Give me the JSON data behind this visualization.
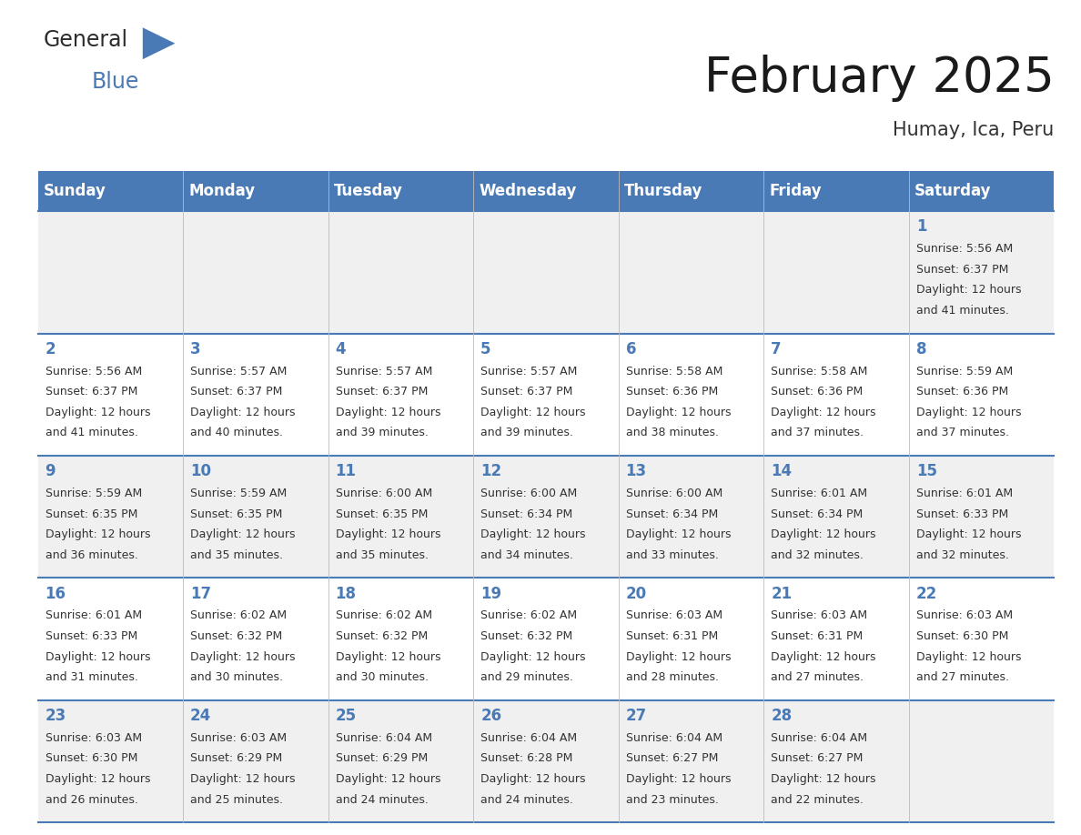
{
  "title": "February 2025",
  "subtitle": "Humay, Ica, Peru",
  "days_of_week": [
    "Sunday",
    "Monday",
    "Tuesday",
    "Wednesday",
    "Thursday",
    "Friday",
    "Saturday"
  ],
  "header_bg_color": "#4a7ab5",
  "header_text_color": "#FFFFFF",
  "cell_bg_even": "#f0f0f0",
  "cell_bg_odd": "#FFFFFF",
  "day_number_color": "#4a7ab5",
  "text_color": "#333333",
  "line_color": "#4a7ab5",
  "background_color": "#FFFFFF",
  "weeks": [
    [
      {
        "day": null,
        "sunrise": null,
        "sunset": null,
        "daylight": null
      },
      {
        "day": null,
        "sunrise": null,
        "sunset": null,
        "daylight": null
      },
      {
        "day": null,
        "sunrise": null,
        "sunset": null,
        "daylight": null
      },
      {
        "day": null,
        "sunrise": null,
        "sunset": null,
        "daylight": null
      },
      {
        "day": null,
        "sunrise": null,
        "sunset": null,
        "daylight": null
      },
      {
        "day": null,
        "sunrise": null,
        "sunset": null,
        "daylight": null
      },
      {
        "day": 1,
        "sunrise": "5:56 AM",
        "sunset": "6:37 PM",
        "daylight": "12 hours and 41 minutes."
      }
    ],
    [
      {
        "day": 2,
        "sunrise": "5:56 AM",
        "sunset": "6:37 PM",
        "daylight": "12 hours and 41 minutes."
      },
      {
        "day": 3,
        "sunrise": "5:57 AM",
        "sunset": "6:37 PM",
        "daylight": "12 hours and 40 minutes."
      },
      {
        "day": 4,
        "sunrise": "5:57 AM",
        "sunset": "6:37 PM",
        "daylight": "12 hours and 39 minutes."
      },
      {
        "day": 5,
        "sunrise": "5:57 AM",
        "sunset": "6:37 PM",
        "daylight": "12 hours and 39 minutes."
      },
      {
        "day": 6,
        "sunrise": "5:58 AM",
        "sunset": "6:36 PM",
        "daylight": "12 hours and 38 minutes."
      },
      {
        "day": 7,
        "sunrise": "5:58 AM",
        "sunset": "6:36 PM",
        "daylight": "12 hours and 37 minutes."
      },
      {
        "day": 8,
        "sunrise": "5:59 AM",
        "sunset": "6:36 PM",
        "daylight": "12 hours and 37 minutes."
      }
    ],
    [
      {
        "day": 9,
        "sunrise": "5:59 AM",
        "sunset": "6:35 PM",
        "daylight": "12 hours and 36 minutes."
      },
      {
        "day": 10,
        "sunrise": "5:59 AM",
        "sunset": "6:35 PM",
        "daylight": "12 hours and 35 minutes."
      },
      {
        "day": 11,
        "sunrise": "6:00 AM",
        "sunset": "6:35 PM",
        "daylight": "12 hours and 35 minutes."
      },
      {
        "day": 12,
        "sunrise": "6:00 AM",
        "sunset": "6:34 PM",
        "daylight": "12 hours and 34 minutes."
      },
      {
        "day": 13,
        "sunrise": "6:00 AM",
        "sunset": "6:34 PM",
        "daylight": "12 hours and 33 minutes."
      },
      {
        "day": 14,
        "sunrise": "6:01 AM",
        "sunset": "6:34 PM",
        "daylight": "12 hours and 32 minutes."
      },
      {
        "day": 15,
        "sunrise": "6:01 AM",
        "sunset": "6:33 PM",
        "daylight": "12 hours and 32 minutes."
      }
    ],
    [
      {
        "day": 16,
        "sunrise": "6:01 AM",
        "sunset": "6:33 PM",
        "daylight": "12 hours and 31 minutes."
      },
      {
        "day": 17,
        "sunrise": "6:02 AM",
        "sunset": "6:32 PM",
        "daylight": "12 hours and 30 minutes."
      },
      {
        "day": 18,
        "sunrise": "6:02 AM",
        "sunset": "6:32 PM",
        "daylight": "12 hours and 30 minutes."
      },
      {
        "day": 19,
        "sunrise": "6:02 AM",
        "sunset": "6:32 PM",
        "daylight": "12 hours and 29 minutes."
      },
      {
        "day": 20,
        "sunrise": "6:03 AM",
        "sunset": "6:31 PM",
        "daylight": "12 hours and 28 minutes."
      },
      {
        "day": 21,
        "sunrise": "6:03 AM",
        "sunset": "6:31 PM",
        "daylight": "12 hours and 27 minutes."
      },
      {
        "day": 22,
        "sunrise": "6:03 AM",
        "sunset": "6:30 PM",
        "daylight": "12 hours and 27 minutes."
      }
    ],
    [
      {
        "day": 23,
        "sunrise": "6:03 AM",
        "sunset": "6:30 PM",
        "daylight": "12 hours and 26 minutes."
      },
      {
        "day": 24,
        "sunrise": "6:03 AM",
        "sunset": "6:29 PM",
        "daylight": "12 hours and 25 minutes."
      },
      {
        "day": 25,
        "sunrise": "6:04 AM",
        "sunset": "6:29 PM",
        "daylight": "12 hours and 24 minutes."
      },
      {
        "day": 26,
        "sunrise": "6:04 AM",
        "sunset": "6:28 PM",
        "daylight": "12 hours and 24 minutes."
      },
      {
        "day": 27,
        "sunrise": "6:04 AM",
        "sunset": "6:27 PM",
        "daylight": "12 hours and 23 minutes."
      },
      {
        "day": 28,
        "sunrise": "6:04 AM",
        "sunset": "6:27 PM",
        "daylight": "12 hours and 22 minutes."
      },
      {
        "day": null,
        "sunrise": null,
        "sunset": null,
        "daylight": null
      }
    ]
  ],
  "title_fontsize": 38,
  "subtitle_fontsize": 15,
  "header_fontsize": 12,
  "day_num_fontsize": 12,
  "cell_text_fontsize": 9
}
